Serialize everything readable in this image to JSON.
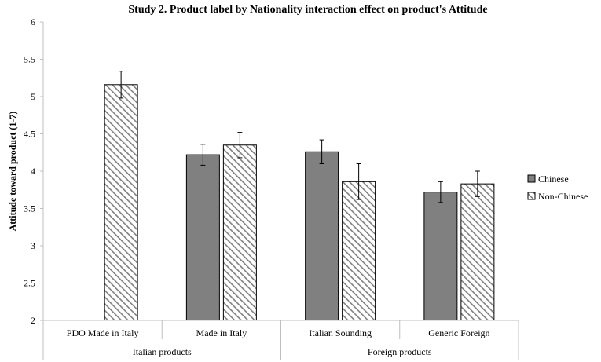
{
  "chart_data": {
    "type": "bar",
    "title": "Study 2. Product label by Nationality interaction effect on product's Attitude",
    "xlabel": "",
    "ylabel": "Attitude toward product (1-7)",
    "ylim": [
      2,
      6
    ],
    "yticks": [
      "2",
      "2.5",
      "3",
      "3.5",
      "4",
      "4.5",
      "5",
      "5.5",
      "6"
    ],
    "categories": [
      "PDO Made in Italy",
      "Made in Italy",
      "Italian Sounding",
      "Generic Foreign"
    ],
    "groups": [
      {
        "label": "Italian products",
        "categories": [
          "PDO Made in Italy",
          "Made in Italy"
        ]
      },
      {
        "label": "Foreign products",
        "categories": [
          "Italian Sounding",
          "Generic Foreign"
        ]
      }
    ],
    "series": [
      {
        "name": "Chinese",
        "values": [
          null,
          4.22,
          4.26,
          3.72
        ],
        "errors": [
          null,
          0.14,
          0.16,
          0.14
        ],
        "color": "#808080",
        "pattern": "solid"
      },
      {
        "name": "Non-Chinese",
        "values": [
          5.16,
          4.35,
          3.86,
          3.83
        ],
        "errors": [
          0.18,
          0.17,
          0.24,
          0.17
        ],
        "color": "#ffffff",
        "pattern": "diagonal-hatch"
      }
    ],
    "legend_position": "right",
    "grid": false
  }
}
